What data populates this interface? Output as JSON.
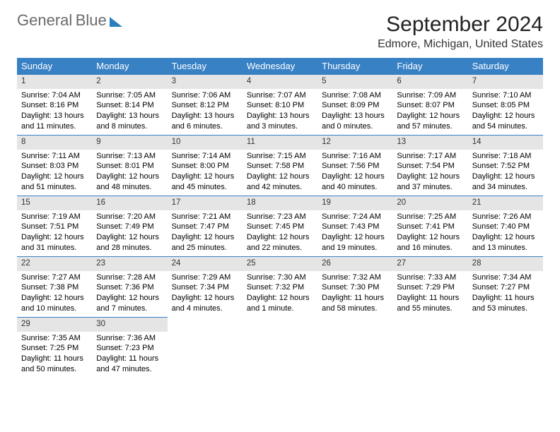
{
  "logo": {
    "word1": "General",
    "word2": "Blue"
  },
  "title": "September 2024",
  "location": "Edmore, Michigan, United States",
  "colors": {
    "header_bg": "#3981c5",
    "header_fg": "#ffffff",
    "daynum_bg": "#e5e5e5",
    "daynum_border": "#3981c5",
    "logo_gray": "#6b6b6b",
    "logo_blue": "#2b7fbf"
  },
  "weekdays": [
    "Sunday",
    "Monday",
    "Tuesday",
    "Wednesday",
    "Thursday",
    "Friday",
    "Saturday"
  ],
  "days": [
    {
      "n": 1,
      "sunrise": "7:04 AM",
      "sunset": "8:16 PM",
      "daylight": "13 hours and 11 minutes."
    },
    {
      "n": 2,
      "sunrise": "7:05 AM",
      "sunset": "8:14 PM",
      "daylight": "13 hours and 8 minutes."
    },
    {
      "n": 3,
      "sunrise": "7:06 AM",
      "sunset": "8:12 PM",
      "daylight": "13 hours and 6 minutes."
    },
    {
      "n": 4,
      "sunrise": "7:07 AM",
      "sunset": "8:10 PM",
      "daylight": "13 hours and 3 minutes."
    },
    {
      "n": 5,
      "sunrise": "7:08 AM",
      "sunset": "8:09 PM",
      "daylight": "13 hours and 0 minutes."
    },
    {
      "n": 6,
      "sunrise": "7:09 AM",
      "sunset": "8:07 PM",
      "daylight": "12 hours and 57 minutes."
    },
    {
      "n": 7,
      "sunrise": "7:10 AM",
      "sunset": "8:05 PM",
      "daylight": "12 hours and 54 minutes."
    },
    {
      "n": 8,
      "sunrise": "7:11 AM",
      "sunset": "8:03 PM",
      "daylight": "12 hours and 51 minutes."
    },
    {
      "n": 9,
      "sunrise": "7:13 AM",
      "sunset": "8:01 PM",
      "daylight": "12 hours and 48 minutes."
    },
    {
      "n": 10,
      "sunrise": "7:14 AM",
      "sunset": "8:00 PM",
      "daylight": "12 hours and 45 minutes."
    },
    {
      "n": 11,
      "sunrise": "7:15 AM",
      "sunset": "7:58 PM",
      "daylight": "12 hours and 42 minutes."
    },
    {
      "n": 12,
      "sunrise": "7:16 AM",
      "sunset": "7:56 PM",
      "daylight": "12 hours and 40 minutes."
    },
    {
      "n": 13,
      "sunrise": "7:17 AM",
      "sunset": "7:54 PM",
      "daylight": "12 hours and 37 minutes."
    },
    {
      "n": 14,
      "sunrise": "7:18 AM",
      "sunset": "7:52 PM",
      "daylight": "12 hours and 34 minutes."
    },
    {
      "n": 15,
      "sunrise": "7:19 AM",
      "sunset": "7:51 PM",
      "daylight": "12 hours and 31 minutes."
    },
    {
      "n": 16,
      "sunrise": "7:20 AM",
      "sunset": "7:49 PM",
      "daylight": "12 hours and 28 minutes."
    },
    {
      "n": 17,
      "sunrise": "7:21 AM",
      "sunset": "7:47 PM",
      "daylight": "12 hours and 25 minutes."
    },
    {
      "n": 18,
      "sunrise": "7:23 AM",
      "sunset": "7:45 PM",
      "daylight": "12 hours and 22 minutes."
    },
    {
      "n": 19,
      "sunrise": "7:24 AM",
      "sunset": "7:43 PM",
      "daylight": "12 hours and 19 minutes."
    },
    {
      "n": 20,
      "sunrise": "7:25 AM",
      "sunset": "7:41 PM",
      "daylight": "12 hours and 16 minutes."
    },
    {
      "n": 21,
      "sunrise": "7:26 AM",
      "sunset": "7:40 PM",
      "daylight": "12 hours and 13 minutes."
    },
    {
      "n": 22,
      "sunrise": "7:27 AM",
      "sunset": "7:38 PM",
      "daylight": "12 hours and 10 minutes."
    },
    {
      "n": 23,
      "sunrise": "7:28 AM",
      "sunset": "7:36 PM",
      "daylight": "12 hours and 7 minutes."
    },
    {
      "n": 24,
      "sunrise": "7:29 AM",
      "sunset": "7:34 PM",
      "daylight": "12 hours and 4 minutes."
    },
    {
      "n": 25,
      "sunrise": "7:30 AM",
      "sunset": "7:32 PM",
      "daylight": "12 hours and 1 minute."
    },
    {
      "n": 26,
      "sunrise": "7:32 AM",
      "sunset": "7:30 PM",
      "daylight": "11 hours and 58 minutes."
    },
    {
      "n": 27,
      "sunrise": "7:33 AM",
      "sunset": "7:29 PM",
      "daylight": "11 hours and 55 minutes."
    },
    {
      "n": 28,
      "sunrise": "7:34 AM",
      "sunset": "7:27 PM",
      "daylight": "11 hours and 53 minutes."
    },
    {
      "n": 29,
      "sunrise": "7:35 AM",
      "sunset": "7:25 PM",
      "daylight": "11 hours and 50 minutes."
    },
    {
      "n": 30,
      "sunrise": "7:36 AM",
      "sunset": "7:23 PM",
      "daylight": "11 hours and 47 minutes."
    }
  ],
  "labels": {
    "sunrise_prefix": "Sunrise: ",
    "sunset_prefix": "Sunset: ",
    "daylight_prefix": "Daylight: "
  },
  "layout": {
    "first_weekday_index": 0,
    "rows": 5,
    "cols": 7
  }
}
